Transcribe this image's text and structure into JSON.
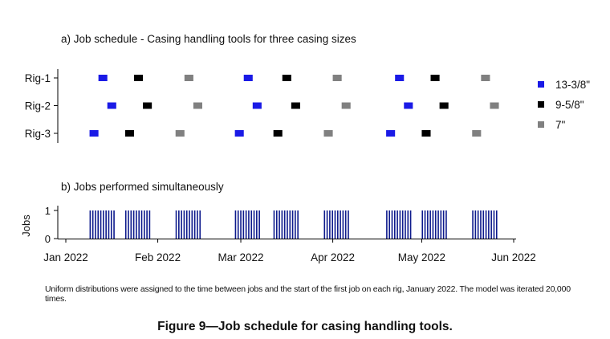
{
  "chart_data": [
    {
      "type": "gantt",
      "title": "a) Job schedule - Casing handling tools for three casing sizes",
      "rows": [
        "Rig-1",
        "Rig-2",
        "Rig-3"
      ],
      "legend": [
        {
          "name": "13-3/8\"",
          "color": "#1a1ae6"
        },
        {
          "name": "9-5/8\"",
          "color": "#000000"
        },
        {
          "name": "7\"",
          "color": "#808080"
        }
      ],
      "legend_position": "right",
      "tasks": [
        {
          "row": "Rig-1",
          "series": 0,
          "start": "2022-01-12",
          "end": "2022-01-15"
        },
        {
          "row": "Rig-1",
          "series": 1,
          "start": "2022-01-24",
          "end": "2022-01-27"
        },
        {
          "row": "Rig-1",
          "series": 2,
          "start": "2022-02-10",
          "end": "2022-02-13"
        },
        {
          "row": "Rig-1",
          "series": 0,
          "start": "2022-03-02",
          "end": "2022-03-05"
        },
        {
          "row": "Rig-1",
          "series": 1,
          "start": "2022-03-15",
          "end": "2022-03-18"
        },
        {
          "row": "Rig-1",
          "series": 2,
          "start": "2022-04-01",
          "end": "2022-04-04"
        },
        {
          "row": "Rig-1",
          "series": 0,
          "start": "2022-04-22",
          "end": "2022-04-25"
        },
        {
          "row": "Rig-1",
          "series": 1,
          "start": "2022-05-04",
          "end": "2022-05-07"
        },
        {
          "row": "Rig-1",
          "series": 2,
          "start": "2022-05-21",
          "end": "2022-05-24"
        },
        {
          "row": "Rig-2",
          "series": 0,
          "start": "2022-01-15",
          "end": "2022-01-18"
        },
        {
          "row": "Rig-2",
          "series": 1,
          "start": "2022-01-27",
          "end": "2022-01-30"
        },
        {
          "row": "Rig-2",
          "series": 2,
          "start": "2022-02-13",
          "end": "2022-02-16"
        },
        {
          "row": "Rig-2",
          "series": 0,
          "start": "2022-03-05",
          "end": "2022-03-08"
        },
        {
          "row": "Rig-2",
          "series": 1,
          "start": "2022-03-18",
          "end": "2022-03-21"
        },
        {
          "row": "Rig-2",
          "series": 2,
          "start": "2022-04-04",
          "end": "2022-04-07"
        },
        {
          "row": "Rig-2",
          "series": 0,
          "start": "2022-04-25",
          "end": "2022-04-28"
        },
        {
          "row": "Rig-2",
          "series": 1,
          "start": "2022-05-07",
          "end": "2022-05-10"
        },
        {
          "row": "Rig-2",
          "series": 2,
          "start": "2022-05-24",
          "end": "2022-05-27"
        },
        {
          "row": "Rig-3",
          "series": 0,
          "start": "2022-01-09",
          "end": "2022-01-12"
        },
        {
          "row": "Rig-3",
          "series": 1,
          "start": "2022-01-21",
          "end": "2022-01-24"
        },
        {
          "row": "Rig-3",
          "series": 2,
          "start": "2022-02-07",
          "end": "2022-02-10"
        },
        {
          "row": "Rig-3",
          "series": 0,
          "start": "2022-02-27",
          "end": "2022-03-02"
        },
        {
          "row": "Rig-3",
          "series": 1,
          "start": "2022-03-12",
          "end": "2022-03-15"
        },
        {
          "row": "Rig-3",
          "series": 2,
          "start": "2022-03-29",
          "end": "2022-04-01"
        },
        {
          "row": "Rig-3",
          "series": 0,
          "start": "2022-04-19",
          "end": "2022-04-22"
        },
        {
          "row": "Rig-3",
          "series": 1,
          "start": "2022-05-01",
          "end": "2022-05-04"
        },
        {
          "row": "Rig-3",
          "series": 2,
          "start": "2022-05-18",
          "end": "2022-05-21"
        }
      ],
      "xlim": [
        "2022-01-01",
        "2022-06-01"
      ],
      "grid": false
    },
    {
      "type": "bar",
      "title": "b) Jobs performed simultaneously",
      "ylabel": "Jobs",
      "ylim": [
        0,
        1
      ],
      "yticks": [
        0,
        1
      ],
      "xticks": [
        "Jan 2022",
        "Feb 2022",
        "Mar 2022",
        "Apr 2022",
        "May 2022",
        "Jun 2022"
      ],
      "xtick_dates": [
        "2022-01-01",
        "2022-02-01",
        "2022-03-01",
        "2022-04-01",
        "2022-05-01",
        "2022-06-01"
      ],
      "xlim": [
        "2022-01-01",
        "2022-06-01"
      ],
      "color": "#0d1a8c",
      "value": 1,
      "active_periods": [
        [
          "2022-01-09",
          "2022-01-18"
        ],
        [
          "2022-01-21",
          "2022-01-30"
        ],
        [
          "2022-02-07",
          "2022-02-16"
        ],
        [
          "2022-02-27",
          "2022-03-08"
        ],
        [
          "2022-03-12",
          "2022-03-21"
        ],
        [
          "2022-03-29",
          "2022-04-07"
        ],
        [
          "2022-04-19",
          "2022-04-28"
        ],
        [
          "2022-05-01",
          "2022-05-10"
        ],
        [
          "2022-05-18",
          "2022-05-27"
        ]
      ],
      "grid": false
    }
  ],
  "note": "Uniform distributions were assigned to the time between jobs and the start of the first job on each rig, January 2022. The model was iterated 20,000 times.",
  "caption": "Figure 9—Job schedule for casing handling tools."
}
